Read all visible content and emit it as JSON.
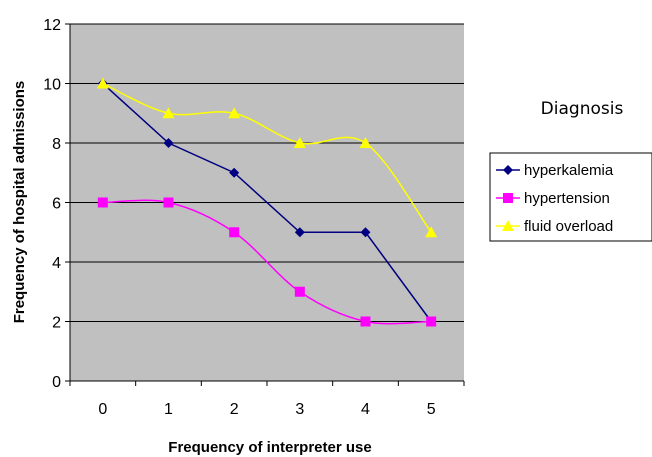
{
  "chart_data": {
    "type": "line",
    "xlabel": "Frequency of interpreter use",
    "ylabel": "Frequency of hospital admissions",
    "categories": [
      "0",
      "1",
      "2",
      "3",
      "4",
      "5"
    ],
    "ylim": [
      0,
      12
    ],
    "yticks": [
      0,
      2,
      4,
      6,
      8,
      10,
      12
    ],
    "grid": "horizontal",
    "legend_title": "Diagnosis",
    "legend_position": "right",
    "series": [
      {
        "name": "hyperkalemia",
        "color": "#000080",
        "marker": "diamond",
        "smooth": false,
        "values": [
          10,
          8,
          7,
          5,
          5,
          2
        ]
      },
      {
        "name": "hypertension",
        "color": "#ff00ff",
        "marker": "square",
        "smooth": true,
        "values": [
          6,
          6,
          5,
          3,
          2,
          2
        ]
      },
      {
        "name": "fluid overload",
        "color": "#ffff00",
        "marker": "triangle",
        "smooth": true,
        "values": [
          10,
          9,
          9,
          8,
          8,
          5
        ]
      }
    ]
  }
}
